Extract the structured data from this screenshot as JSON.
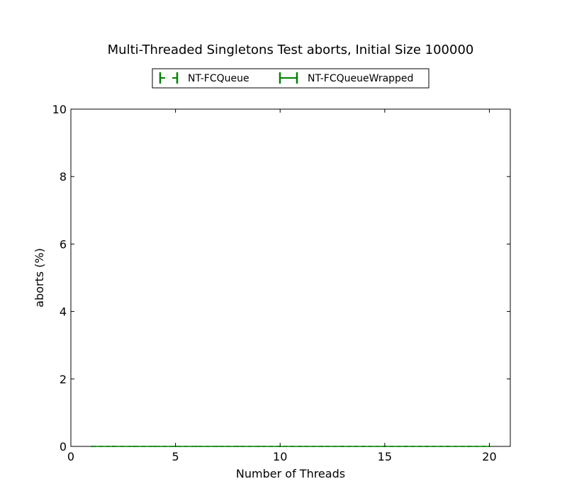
{
  "chart_data": {
    "type": "line",
    "title": "Multi-Threaded Singletons Test aborts, Initial Size 100000",
    "xlabel": "Number of Threads",
    "ylabel": "aborts (%)",
    "xlim": [
      0,
      21
    ],
    "ylim": [
      0,
      10
    ],
    "xticks": [
      0,
      5,
      10,
      15,
      20
    ],
    "yticks": [
      0,
      2,
      4,
      6,
      8,
      10
    ],
    "grid": false,
    "legend_position": "top-center",
    "series": [
      {
        "name": "NT-FCQueue",
        "color": "#008000",
        "style": "dashed",
        "x": [
          1,
          2,
          3,
          4,
          5,
          6,
          7,
          8,
          9,
          10,
          11,
          12,
          13,
          14,
          15,
          16,
          17,
          18,
          19,
          20
        ],
        "values": [
          0,
          0,
          0,
          0,
          0,
          0,
          0,
          0,
          0,
          0,
          0,
          0,
          0,
          0,
          0,
          0,
          0,
          0,
          0,
          0
        ]
      },
      {
        "name": "NT-FCQueueWrapped",
        "color": "#008000",
        "style": "solid",
        "x": [
          1,
          2,
          3,
          4,
          5,
          6,
          7,
          8,
          9,
          10,
          11,
          12,
          13,
          14,
          15,
          16,
          17,
          18,
          19,
          20
        ],
        "values": [
          0,
          0,
          0,
          0,
          0,
          0,
          0,
          0,
          0,
          0,
          0,
          0,
          0,
          0,
          0,
          0,
          0,
          0,
          0,
          0
        ]
      }
    ]
  }
}
